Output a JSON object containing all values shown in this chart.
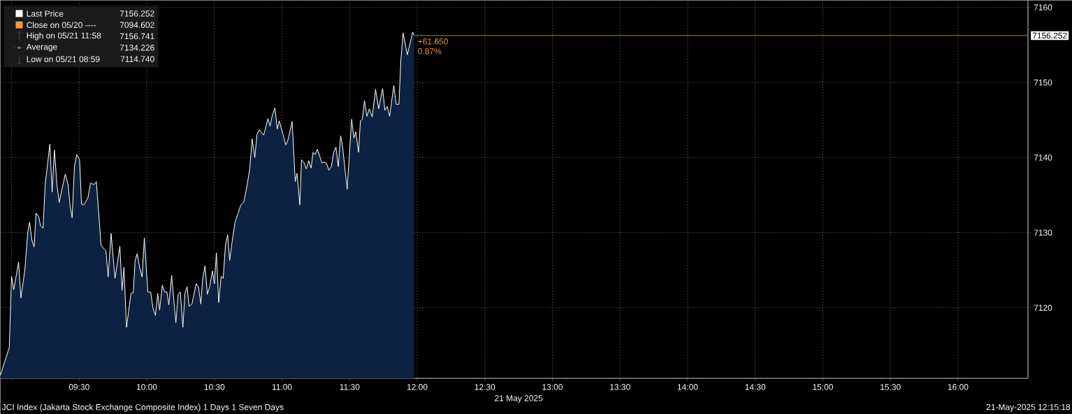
{
  "chart_data": {
    "type": "area",
    "xlabel": "21 May 2025",
    "xlim": [
      8.917,
      16.517
    ],
    "ylim": [
      7110.6,
      7160.95
    ],
    "xticks": [
      {
        "value": 9,
        "label": null
      },
      {
        "value": 9.5,
        "label": "09:30"
      },
      {
        "value": 10,
        "label": "10:00"
      },
      {
        "value": 10.5,
        "label": "10:30"
      },
      {
        "value": 11,
        "label": "11:00"
      },
      {
        "value": 11.5,
        "label": "11:30"
      },
      {
        "value": 12,
        "label": "12:00"
      },
      {
        "value": 12.5,
        "label": "12:30"
      },
      {
        "value": 13,
        "label": "13:00"
      },
      {
        "value": 13.5,
        "label": "13:30"
      },
      {
        "value": 14,
        "label": "14:00"
      },
      {
        "value": 14.5,
        "label": "14:30"
      },
      {
        "value": 15,
        "label": "15:00"
      },
      {
        "value": 15.5,
        "label": "15:30"
      },
      {
        "value": 16,
        "label": "16:00"
      }
    ],
    "yticks": [
      7120,
      7130,
      7140,
      7150,
      7160
    ],
    "grid": true,
    "legend": "top left",
    "series": [
      {
        "name": "Last Price",
        "color": "#ffffff",
        "x": [
          8.917,
          8.983,
          9.0,
          9.016,
          9.052,
          9.069,
          9.098,
          9.12,
          9.133,
          9.15,
          9.167,
          9.181,
          9.202,
          9.214,
          9.233,
          9.248,
          9.283,
          9.3,
          9.317,
          9.335,
          9.352,
          9.397,
          9.417,
          9.434,
          9.448,
          9.465,
          9.482,
          9.503,
          9.517,
          9.534,
          9.564,
          9.584,
          9.61,
          9.627,
          9.662,
          9.681,
          9.698,
          9.714,
          9.736,
          9.765,
          9.801,
          9.817,
          9.831,
          9.85,
          9.883,
          9.9,
          9.914,
          9.929,
          9.948,
          9.965,
          9.982,
          10.008,
          10.029,
          10.046,
          10.064,
          10.081,
          10.095,
          10.115,
          10.132,
          10.149,
          10.163,
          10.184,
          10.215,
          10.232,
          10.248,
          10.267,
          10.282,
          10.298,
          10.313,
          10.334,
          10.365,
          10.382,
          10.4,
          10.413,
          10.431,
          10.448,
          10.465,
          10.486,
          10.5,
          10.515,
          10.532,
          10.55,
          10.565,
          10.582,
          10.598,
          10.613,
          10.632,
          10.653,
          10.675,
          10.696,
          10.718,
          10.741,
          10.762,
          10.779,
          10.799,
          10.815,
          10.832,
          10.865,
          10.896,
          10.912,
          10.929,
          10.948,
          10.965,
          10.98,
          11.028,
          11.042,
          11.075,
          11.098,
          11.111,
          11.132,
          11.144,
          11.161,
          11.18,
          11.198,
          11.215,
          11.23,
          11.244,
          11.261,
          11.296,
          11.313,
          11.33,
          11.347,
          11.365,
          11.382,
          11.399,
          11.416,
          11.434,
          11.447,
          11.482,
          11.499,
          11.515,
          11.532,
          11.546,
          11.566,
          11.58,
          11.594,
          11.61,
          11.628,
          11.646,
          11.667,
          11.692,
          11.715,
          11.744,
          11.761,
          11.778,
          11.796,
          11.827,
          11.844,
          11.865,
          11.879,
          11.896,
          11.927,
          11.967,
          11.977
        ],
        "values": [
          7111.0,
          7114.7,
          7124.2,
          7122.4,
          7126.1,
          7121.3,
          7125.0,
          7130.1,
          7131.4,
          7129.0,
          7128.1,
          7132.6,
          7132.1,
          7130.9,
          7130.6,
          7136.3,
          7141.8,
          7135.4,
          7141.0,
          7136.5,
          7134.0,
          7137.8,
          7136.5,
          7133.4,
          7132.0,
          7138.8,
          7140.4,
          7139.7,
          7133.8,
          7133.7,
          7134.6,
          7136.6,
          7136.4,
          7136.8,
          7128.3,
          7127.9,
          7127.6,
          7124.1,
          7129.9,
          7123.9,
          7128.2,
          7122.3,
          7125.4,
          7117.4,
          7121.9,
          7122.0,
          7126.3,
          7127.2,
          7125.3,
          7124.1,
          7129.3,
          7122.1,
          7122.1,
          7119.9,
          7119.0,
          7121.9,
          7119.7,
          7123.0,
          7122.1,
          7122.1,
          7120.4,
          7124.3,
          7118.0,
          7121.8,
          7122.1,
          7117.4,
          7121.9,
          7122.8,
          7120.2,
          7120.5,
          7123.2,
          7122.8,
          7120.5,
          7123.8,
          7125.6,
          7121.8,
          7122.8,
          7124.9,
          7123.2,
          7127.3,
          7120.7,
          7124.2,
          7123.9,
          7128.4,
          7129.7,
          7126.3,
          7128.9,
          7131.4,
          7132.6,
          7133.7,
          7134.1,
          7136.2,
          7138.6,
          7142.5,
          7140.0,
          7143.1,
          7143.7,
          7143.0,
          7145.2,
          7144.2,
          7145.7,
          7146.6,
          7143.8,
          7144.9,
          7141.7,
          7142.2,
          7144.8,
          7136.8,
          7137.9,
          7133.7,
          7139.7,
          7139.4,
          7138.5,
          7139.6,
          7138.6,
          7140.7,
          7140.4,
          7141.1,
          7139.3,
          7139.4,
          7139.2,
          7138.3,
          7138.8,
          7140.7,
          7141.4,
          7138.8,
          7142.9,
          7141.6,
          7135.8,
          7140.5,
          7145.1,
          7142.6,
          7143.4,
          7140.7,
          7144.9,
          7145.1,
          7147.6,
          7145.5,
          7146.5,
          7145.4,
          7149.1,
          7146.5,
          7149.2,
          7146.3,
          7146.8,
          7145.5,
          7149.6,
          7147.1,
          7147.1,
          7153.0,
          7156.6,
          7153.7,
          7156.7,
          7156.3
        ]
      }
    ],
    "ref_lines": [
      {
        "axis": "y",
        "value": 7156.252,
        "label": "7156.252",
        "color": "#f39a3c"
      }
    ],
    "annotations": [
      "7156.252",
      "Close on 05/20 ----",
      "7094.602",
      "High on 05/21 11:58",
      "7156.741",
      "Average",
      "7134.226",
      "Low on 05/21 08:59",
      "7114.740",
      "+61.650",
      "0.87%",
      "JCI Index (Jakarta Stock Exchange Composite Index) 1 Days 1 Seven Days",
      "21-May-2025 12:15:18"
    ]
  }
}
